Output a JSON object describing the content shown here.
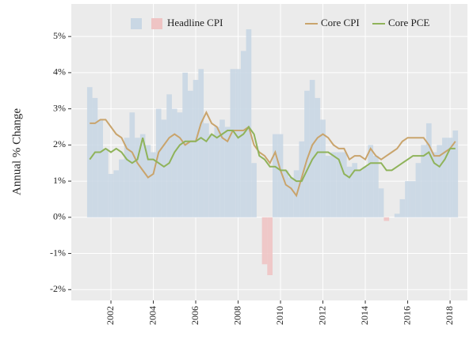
{
  "chart_data": {
    "type": "bar-line",
    "ylabel": "Annual % Change",
    "x": [
      2001.0,
      2001.25,
      2001.5,
      2001.75,
      2002.0,
      2002.25,
      2002.5,
      2002.75,
      2003.0,
      2003.25,
      2003.5,
      2003.75,
      2004.0,
      2004.25,
      2004.5,
      2004.75,
      2005.0,
      2005.25,
      2005.5,
      2005.75,
      2006.0,
      2006.25,
      2006.5,
      2006.75,
      2007.0,
      2007.25,
      2007.5,
      2007.75,
      2008.0,
      2008.25,
      2008.5,
      2008.75,
      2009.0,
      2009.25,
      2009.5,
      2009.75,
      2010.0,
      2010.25,
      2010.5,
      2010.75,
      2011.0,
      2011.25,
      2011.5,
      2011.75,
      2012.0,
      2012.25,
      2012.5,
      2012.75,
      2013.0,
      2013.25,
      2013.5,
      2013.75,
      2014.0,
      2014.25,
      2014.5,
      2014.75,
      2015.0,
      2015.25,
      2015.5,
      2015.75,
      2016.0,
      2016.25,
      2016.5,
      2016.75,
      2017.0,
      2017.25,
      2017.5,
      2017.75,
      2018.0,
      2018.25
    ],
    "series": [
      {
        "name": "Headline CPI",
        "kind": "bar",
        "color": "#c9d7e4",
        "negative_color": "#efc4c4",
        "values": [
          3.6,
          3.3,
          2.7,
          1.9,
          1.2,
          1.3,
          1.6,
          2.2,
          2.9,
          2.2,
          2.3,
          2.0,
          1.8,
          3.0,
          2.7,
          3.4,
          3.0,
          2.9,
          4.0,
          3.5,
          3.8,
          4.1,
          2.6,
          2.3,
          2.5,
          2.7,
          2.5,
          4.1,
          4.1,
          4.6,
          5.2,
          1.5,
          0.0,
          -1.3,
          -1.6,
          2.3,
          2.3,
          1.3,
          1.1,
          1.3,
          2.1,
          3.5,
          3.8,
          3.3,
          2.7,
          1.7,
          1.8,
          1.8,
          1.8,
          1.4,
          1.5,
          1.3,
          1.4,
          2.0,
          1.7,
          0.8,
          -0.1,
          0.0,
          0.1,
          0.5,
          1.0,
          1.0,
          1.5,
          2.0,
          2.6,
          1.8,
          2.0,
          2.2,
          2.2,
          2.4
        ]
      },
      {
        "name": "Core CPI",
        "kind": "line",
        "color": "#c9a46c",
        "values": [
          2.6,
          2.6,
          2.7,
          2.7,
          2.5,
          2.3,
          2.2,
          1.9,
          1.8,
          1.5,
          1.3,
          1.1,
          1.2,
          1.8,
          2.0,
          2.2,
          2.3,
          2.2,
          2.0,
          2.1,
          2.1,
          2.6,
          2.9,
          2.6,
          2.5,
          2.2,
          2.1,
          2.4,
          2.4,
          2.4,
          2.5,
          2.0,
          1.8,
          1.7,
          1.5,
          1.8,
          1.3,
          0.9,
          0.8,
          0.6,
          1.1,
          1.6,
          2.0,
          2.2,
          2.3,
          2.2,
          2.0,
          1.9,
          1.9,
          1.6,
          1.7,
          1.7,
          1.6,
          1.9,
          1.7,
          1.6,
          1.7,
          1.8,
          1.9,
          2.1,
          2.2,
          2.2,
          2.2,
          2.2,
          2.0,
          1.7,
          1.7,
          1.8,
          1.9,
          2.1
        ]
      },
      {
        "name": "Core PCE",
        "kind": "line",
        "color": "#8fb35a",
        "values": [
          1.6,
          1.8,
          1.8,
          1.9,
          1.8,
          1.9,
          1.8,
          1.6,
          1.5,
          1.6,
          2.2,
          1.6,
          1.6,
          1.5,
          1.4,
          1.5,
          1.8,
          2.0,
          2.1,
          2.1,
          2.1,
          2.2,
          2.1,
          2.3,
          2.2,
          2.3,
          2.4,
          2.4,
          2.2,
          2.3,
          2.5,
          2.3,
          1.7,
          1.6,
          1.4,
          1.4,
          1.3,
          1.3,
          1.1,
          1.0,
          1.0,
          1.3,
          1.6,
          1.8,
          1.8,
          1.8,
          1.7,
          1.6,
          1.2,
          1.1,
          1.3,
          1.3,
          1.4,
          1.5,
          1.5,
          1.5,
          1.3,
          1.3,
          1.4,
          1.5,
          1.6,
          1.7,
          1.7,
          1.7,
          1.8,
          1.5,
          1.4,
          1.6,
          1.9,
          1.9
        ]
      }
    ],
    "xlim": [
      2000.13,
      2018.82
    ],
    "xticks": [
      2002,
      2004,
      2006,
      2008,
      2010,
      2012,
      2014,
      2016,
      2018
    ],
    "ylim": [
      -2.3,
      5.9
    ],
    "yticks": [
      {
        "value": -2,
        "label": "-2%"
      },
      {
        "value": -1,
        "label": "-1%"
      },
      {
        "value": 0,
        "label": "0%"
      },
      {
        "value": 1,
        "label": "1%"
      },
      {
        "value": 2,
        "label": "2%"
      },
      {
        "value": 3,
        "label": "3%"
      },
      {
        "value": 4,
        "label": "4%"
      },
      {
        "value": 5,
        "label": "5%"
      }
    ],
    "grid": true,
    "legend": "top"
  }
}
